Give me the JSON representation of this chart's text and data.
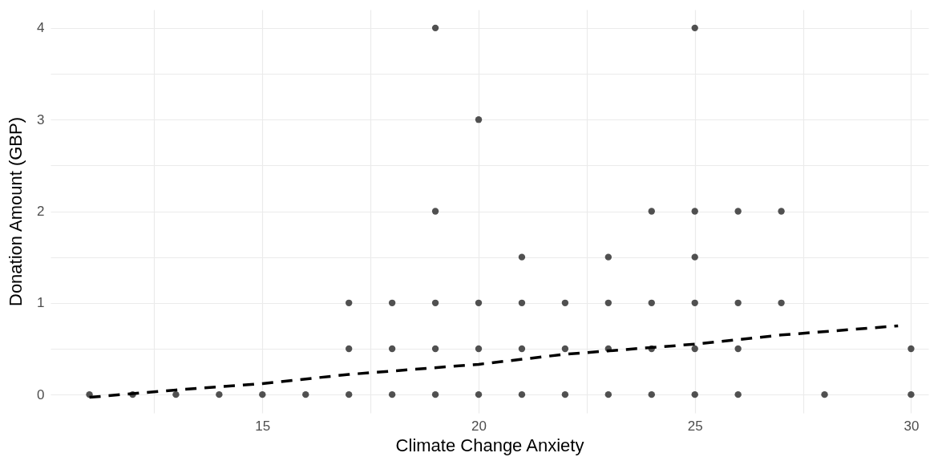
{
  "chart_data": {
    "type": "scatter",
    "xlabel": "Climate Change Anxiety",
    "ylabel": "Donation Amount (GBP)",
    "xlim": [
      10.1,
      30.4
    ],
    "ylim": [
      -0.2,
      4.2
    ],
    "xticks": [
      {
        "value": 12.5,
        "label": null
      },
      15,
      {
        "value": 17.5,
        "label": null
      },
      20,
      {
        "value": 22.5,
        "label": null
      },
      25,
      {
        "value": 27.5,
        "label": null
      },
      30
    ],
    "yticks": [
      0,
      {
        "value": 0.5,
        "label": null
      },
      1,
      {
        "value": 1.5,
        "label": null
      },
      2,
      {
        "value": 2.5,
        "label": null
      },
      3,
      {
        "value": 3.5,
        "label": null
      },
      4
    ],
    "grid": true,
    "series": [
      {
        "marker": "circle",
        "color": "#333333",
        "x": [
          11,
          12,
          13,
          14,
          15,
          16,
          17,
          17,
          17,
          18,
          18,
          18,
          19,
          19,
          19,
          19,
          19,
          20,
          20,
          20,
          20,
          21,
          21,
          21,
          21,
          22,
          22,
          22,
          23,
          23,
          23,
          23,
          24,
          24,
          24,
          24,
          25,
          25,
          25,
          25,
          25,
          25,
          26,
          26,
          26,
          26,
          27,
          27,
          28,
          30,
          30
        ],
        "values": [
          0,
          0,
          0,
          0,
          0,
          0,
          0,
          0.5,
          1,
          0,
          0.5,
          1,
          0,
          0.5,
          1,
          2,
          4,
          0,
          0.5,
          1,
          3,
          0,
          0.5,
          1,
          1.5,
          0,
          0.5,
          1,
          0,
          0.5,
          1,
          1.5,
          0,
          0.5,
          1,
          2,
          0,
          0.5,
          1,
          1.5,
          2,
          4,
          0,
          0.5,
          1,
          2,
          1,
          2,
          0,
          0,
          0.5
        ]
      },
      {
        "type": "line",
        "color": "#000000",
        "line_style": "dashed",
        "x": [
          11,
          13,
          15,
          17,
          20,
          22,
          25,
          27,
          29.7
        ],
        "values": [
          -0.03,
          0.05,
          0.12,
          0.22,
          0.33,
          0.44,
          0.55,
          0.65,
          0.75
        ]
      }
    ]
  }
}
